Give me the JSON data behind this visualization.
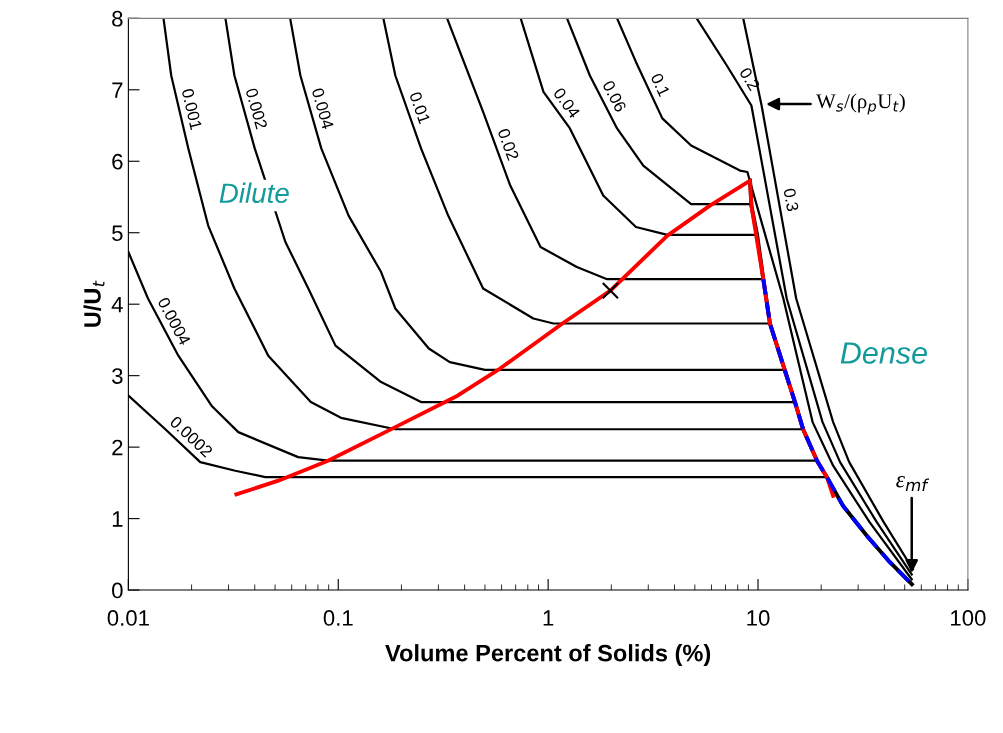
{
  "chart_data": {
    "type": "line",
    "xlabel": "Volume Percent of Solids (%)",
    "ylabel": "U/U$_{t}$",
    "log": "x",
    "xlim": [
      0.01,
      100
    ],
    "xticks": [
      0.01,
      0.1,
      1,
      10,
      100
    ],
    "ylim": [
      0,
      8
    ],
    "yticks": [
      0,
      1,
      2,
      3,
      4,
      5,
      6,
      7,
      8
    ],
    "series": [
      {
        "name": "0.0002",
        "color": "#000000",
        "x": [
          0.01,
          0.015,
          0.022,
          0.0323,
          0.0449,
          21.3
        ],
        "values": [
          2.72,
          2.25,
          1.79,
          1.67,
          1.58,
          1.58
        ]
      },
      {
        "name": "0.0004",
        "color": "#000000",
        "x": [
          0.01,
          0.0124,
          0.0173,
          0.0249,
          0.0334,
          0.0644,
          0.0894,
          19.1
        ],
        "values": [
          4.73,
          4.08,
          3.28,
          2.58,
          2.21,
          1.86,
          1.81,
          1.81
        ]
      },
      {
        "name": "0.001",
        "color": "#000000",
        "x": [
          0.0147,
          0.016,
          0.0193,
          0.024,
          0.032,
          0.0464,
          0.074,
          0.103,
          0.187,
          16.4
        ],
        "values": [
          8,
          7.2,
          6.18,
          5.1,
          4.22,
          3.28,
          2.63,
          2.41,
          2.25,
          2.25
        ]
      },
      {
        "name": "0.002",
        "color": "#000000",
        "x": [
          0.029,
          0.032,
          0.04,
          0.056,
          0.072,
          0.097,
          0.16,
          0.248,
          15.0
        ],
        "values": [
          8,
          7.2,
          6.18,
          4.87,
          4.22,
          3.42,
          2.91,
          2.63,
          2.63
        ]
      },
      {
        "name": "0.004",
        "color": "#000000",
        "x": [
          0.059,
          0.066,
          0.083,
          0.112,
          0.16,
          0.187,
          0.27,
          0.34,
          0.5,
          13.4
        ],
        "values": [
          8,
          7.2,
          6.18,
          5.24,
          4.45,
          3.94,
          3.38,
          3.19,
          3.08,
          3.08
        ]
      },
      {
        "name": "0.01",
        "color": "#000000",
        "x": [
          0.164,
          0.187,
          0.248,
          0.334,
          0.49,
          0.85,
          1.06,
          11.4
        ],
        "values": [
          8,
          7.2,
          6.18,
          5.24,
          4.22,
          3.8,
          3.73,
          3.73
        ]
      },
      {
        "name": "0.02",
        "color": "#000000",
        "x": [
          0.33,
          0.49,
          0.66,
          0.92,
          1.37,
          1.91,
          10.6
        ],
        "values": [
          8,
          6.69,
          5.66,
          4.8,
          4.52,
          4.35,
          4.35
        ]
      },
      {
        "name": "0.04",
        "color": "#000000",
        "x": [
          0.74,
          0.95,
          1.27,
          1.83,
          2.62,
          3.7,
          9.9
        ],
        "values": [
          8,
          6.97,
          6.46,
          5.52,
          5.08,
          4.97,
          4.97
        ]
      },
      {
        "name": "0.06",
        "color": "#000000",
        "x": [
          1.23,
          1.58,
          2.13,
          2.84,
          4.8,
          9.3
        ],
        "values": [
          8,
          7.2,
          6.46,
          5.94,
          5.4,
          5.4
        ]
      },
      {
        "name": "0.1",
        "color": "#000000",
        "x": [
          2.13,
          2.62,
          3.5,
          4.8,
          8.2,
          8.9,
          9.4,
          13.2,
          18.2,
          22.8,
          34,
          54
        ],
        "values": [
          8,
          7.39,
          6.6,
          6.22,
          5.87,
          5.85,
          5.6,
          4.08,
          2.35,
          1.74,
          0.95,
          0.15
        ]
      },
      {
        "name": "0.2",
        "color": "#000000",
        "x": [
          5.1,
          7.1,
          9.3,
          13.7,
          20.3,
          24.6,
          36.8,
          54
        ],
        "values": [
          8,
          7.34,
          6.78,
          4.08,
          2.35,
          1.79,
          0.95,
          0.22
        ]
      },
      {
        "name": "0.3",
        "color": "#000000",
        "x": [
          8.5,
          10.4,
          15.2,
          22.8,
          27.2,
          39.7,
          54.7
        ],
        "values": [
          8,
          6.78,
          4.08,
          2.35,
          1.79,
          0.95,
          0.29
        ]
      },
      {
        "color": "#000000",
        "x": [
          9.16,
          9.3,
          9.9,
          10.6,
          11.4,
          13.4,
          15.0,
          16.4,
          19.1,
          21.3,
          25.4,
          33.0,
          42.5,
          54.1
        ],
        "values": [
          5.73,
          5.38,
          4.97,
          4.35,
          3.73,
          3.08,
          2.63,
          2.25,
          1.81,
          1.58,
          1.18,
          0.76,
          0.39,
          0.08
        ]
      },
      {
        "color": "#ff0000",
        "x": [
          0.0327,
          0.0518,
          0.0894,
          0.187,
          0.37,
          0.59,
          1.17,
          1.98,
          3.7,
          5.9,
          9.16,
          9.3,
          10.6,
          11.4,
          13.4,
          15.0,
          16.4,
          19.1,
          21.3,
          22.8
        ],
        "values": [
          1.34,
          1.53,
          1.81,
          2.28,
          2.72,
          3.1,
          3.73,
          4.19,
          4.96,
          5.38,
          5.73,
          5.38,
          4.35,
          3.73,
          3.08,
          2.63,
          2.25,
          1.81,
          1.58,
          1.32
        ]
      },
      {
        "color": "#0000ff",
        "line_style": "dashed",
        "x": [
          10.6,
          11.4,
          13.4,
          15.0,
          16.4,
          19.1,
          21.3,
          25.4,
          33.0,
          42.5,
          54.1
        ],
        "values": [
          4.35,
          3.73,
          3.08,
          2.63,
          2.25,
          1.81,
          1.58,
          1.18,
          0.76,
          0.39,
          0.08
        ]
      },
      {
        "type": "scatter",
        "marker": "cross",
        "color": "#000000",
        "x": [
          1.98
        ],
        "values": [
          4.19
        ]
      }
    ],
    "annotations": [
      "Dilute",
      "Dense",
      {
        "text": "W$_{s}$/(ρ$_{p}$U$_{t}$)",
        "x": 10.6,
        "y": 6.8
      },
      {
        "text": "ε$_{mf}$",
        "x": 54,
        "y": 0.2
      }
    ]
  }
}
